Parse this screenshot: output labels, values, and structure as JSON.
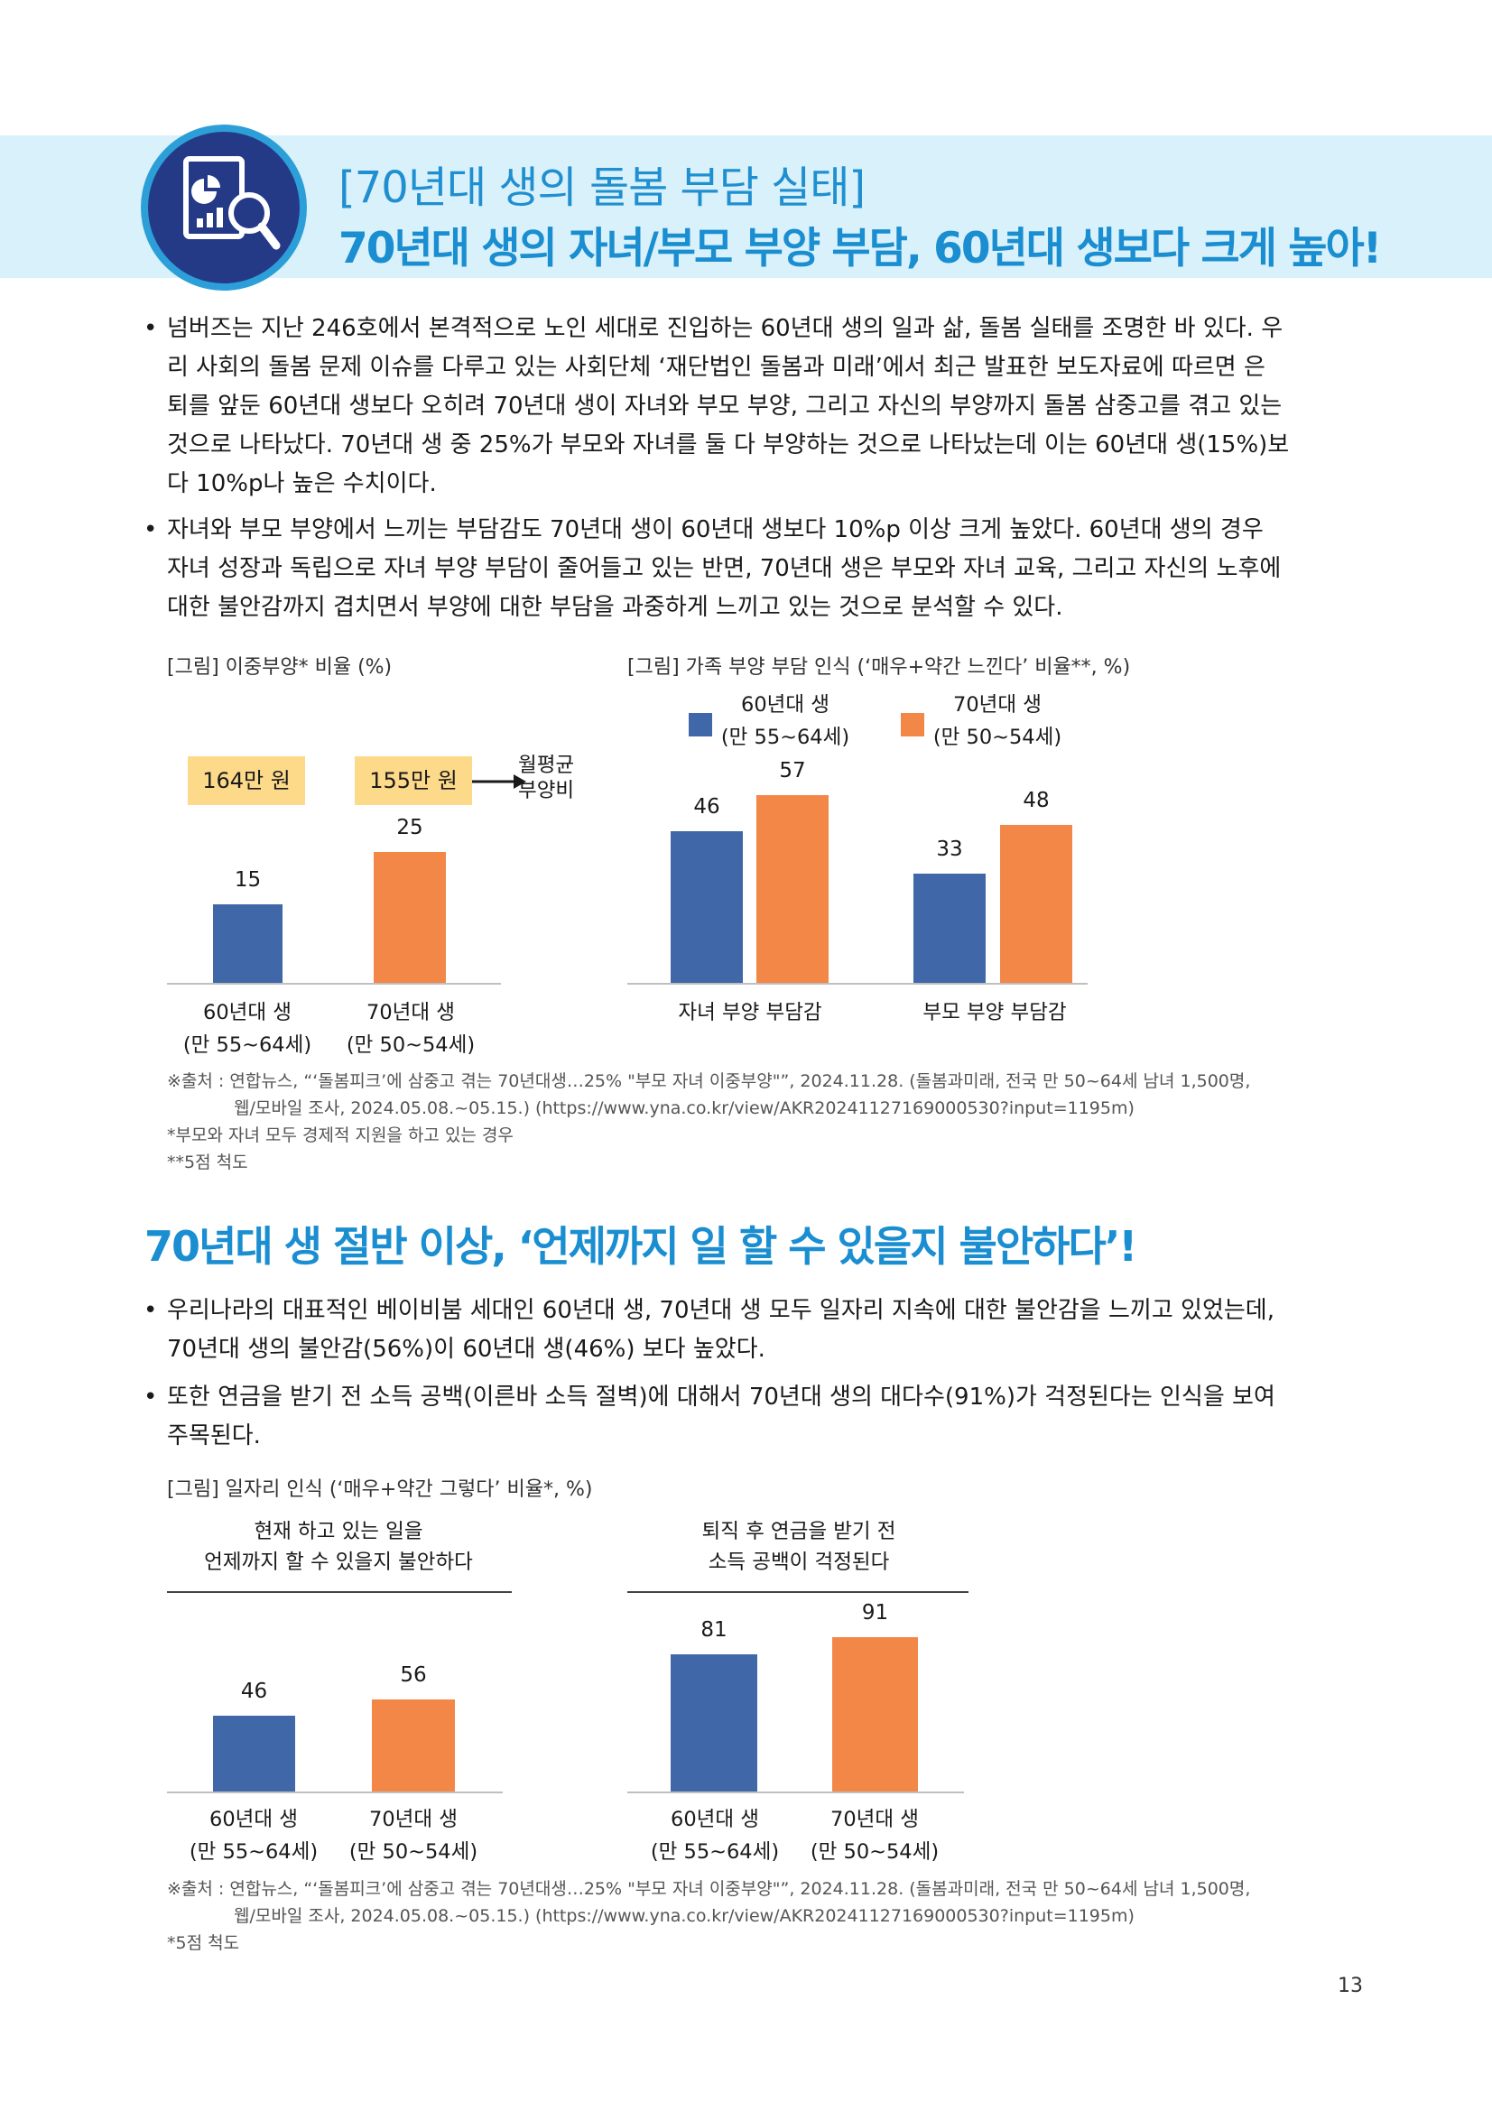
{
  "header": {
    "bracket_title": "[70년대 생의 돌봄 부담 실태]",
    "headline": "70년대 생의 자녀/부모 부양 부담, 60년대 생보다 크게 높아!",
    "icon": "report-magnifier-icon"
  },
  "section1": {
    "bullets": [
      {
        "lines": [
          "넘버즈는 지난 246호에서 본격적으로 노인 세대로 진입하는 60년대 생의 일과 삶, 돌봄 실태를 조명한 바 있다. 우",
          "리 사회의 돌봄 문제 이슈를 다루고 있는 사회단체 ‘재단법인 돌봄과 미래’에서 최근 발표한 보도자료에 따르면 은",
          "퇴를 앞둔 60년대 생보다 오히려 70년대 생이 자녀와 부모 부양, 그리고 자신의 부양까지 돌봄 삼중고를 겪고 있는",
          "것으로 나타났다. 70년대 생 중 25%가 부모와 자녀를 둘 다 부양하는 것으로 나타났는데 이는 60년대 생(15%)보",
          "다 10%p나 높은 수치이다."
        ]
      },
      {
        "lines": [
          "자녀와 부모 부양에서 느끼는 부담감도 70년대 생이 60년대 생보다 10%p 이상 크게 높았다.  60년대 생의 경우",
          "자녀 성장과 독립으로 자녀 부양 부담이 줄어들고 있는 반면, 70년대 생은 부모와 자녀 교육, 그리고 자신의 노후에",
          "대한 불안감까지 겹치면서 부양에 대한 부담을 과중하게 느끼고 있는 것으로 분석할 수 있다."
        ]
      }
    ],
    "bullet_symbol": "•"
  },
  "chart_data": [
    {
      "type": "bar",
      "title": "[그림] 이중부양* 비율 (%)",
      "categories": [
        "60년대 생\n(만 55~64세)",
        "70년대 생\n(만 50~54세)"
      ],
      "category_lines": [
        [
          "60년대 생",
          "(만 55~64세)"
        ],
        [
          "70년대 생",
          "(만 50~54세)"
        ]
      ],
      "values": [
        15,
        25
      ],
      "colors": [
        "#4068a8",
        "#f28748"
      ],
      "annotations": [
        "164만 원",
        "155만 원"
      ],
      "annotation_label_lines": [
        "월평균",
        "부양비"
      ],
      "ylim": [
        0,
        30
      ]
    },
    {
      "type": "bar",
      "title": "[그림] 가족 부양 부담 인식 (‘매우+약간 느낀다’ 비율**, %)",
      "categories": [
        "자녀 부양 부담감",
        "부모 부양 부담감"
      ],
      "series": [
        {
          "name": "60년대 생\n(만 55~64세)",
          "name_lines": [
            "60년대 생",
            "(만 55~64세)"
          ],
          "values": [
            46,
            33
          ],
          "color": "#4068a8"
        },
        {
          "name": "70년대 생\n(만 50~54세)",
          "name_lines": [
            "70년대 생",
            "(만 50~54세)"
          ],
          "values": [
            57,
            48
          ],
          "color": "#f28748"
        }
      ],
      "legend": "top",
      "ylim": [
        0,
        70
      ]
    },
    {
      "type": "bar",
      "title": "[그림] 일자리 인식 (‘매우+약간 그렇다’ 비율*, %)",
      "subtitle_lines": [
        "현재 하고 있는 일을",
        "언제까지 할 수 있을지 불안하다"
      ],
      "categories": [
        "60년대 생\n(만 55~64세)",
        "70년대 생\n(만 50~54세)"
      ],
      "category_lines": [
        [
          "60년대 생",
          "(만 55~64세)"
        ],
        [
          "70년대 생",
          "(만 50~54세)"
        ]
      ],
      "values": [
        46,
        56
      ],
      "colors": [
        "#4068a8",
        "#f28748"
      ],
      "ylim": [
        0,
        100
      ]
    },
    {
      "type": "bar",
      "subtitle_lines": [
        "퇴직 후 연금을 받기 전",
        "소득 공백이 걱정된다"
      ],
      "categories": [
        "60년대 생\n(만 55~64세)",
        "70년대 생\n(만 50~54세)"
      ],
      "category_lines": [
        [
          "60년대 생",
          "(만 55~64세)"
        ],
        [
          "70년대 생",
          "(만 50~54세)"
        ]
      ],
      "values": [
        81,
        91
      ],
      "colors": [
        "#4068a8",
        "#f28748"
      ],
      "ylim": [
        0,
        100
      ]
    }
  ],
  "source1": {
    "lines": [
      "※출처 : 연합뉴스, “‘돌봄피크’에 삼중고 겪는 70년대생…25% \"부모 자녀 이중부양\"”, 2024.11.28. (돌봄과미래, 전국 만 50~64세 남녀 1,500명,",
      "웹/모바일 조사, 2024.05.08.~05.15.) (https://www.yna.co.kr/view/AKR20241127169000530?input=1195m)",
      "*부모와 자녀 모두 경제적 지원을 하고 있는 경우",
      "**5점 척도"
    ]
  },
  "section2": {
    "heading": "70년대 생 절반 이상, ‘언제까지 일 할 수 있을지 불안하다’!",
    "bullets": [
      {
        "lines": [
          "우리나라의 대표적인 베이비붐 세대인 60년대 생, 70년대 생 모두 일자리 지속에 대한 불안감을 느끼고 있었는데,",
          "70년대 생의 불안감(56%)이 60년대 생(46%) 보다 높았다."
        ]
      },
      {
        "lines": [
          "또한 연금을 받기 전 소득 공백(이른바 소득 절벽)에 대해서 70년대 생의 대다수(91%)가 걱정된다는 인식을 보여",
          "주목된다."
        ]
      }
    ]
  },
  "source2": {
    "lines": [
      "※출처 : 연합뉴스, “‘돌봄피크’에 삼중고 겪는 70년대생…25% \"부모 자녀 이중부양\"”, 2024.11.28. (돌봄과미래, 전국 만 50~64세 남녀 1,500명,",
      "웹/모바일 조사, 2024.05.08.~05.15.) (https://www.yna.co.kr/view/AKR20241127169000530?input=1195m)",
      "*5점 척도"
    ]
  },
  "page_number": "13"
}
